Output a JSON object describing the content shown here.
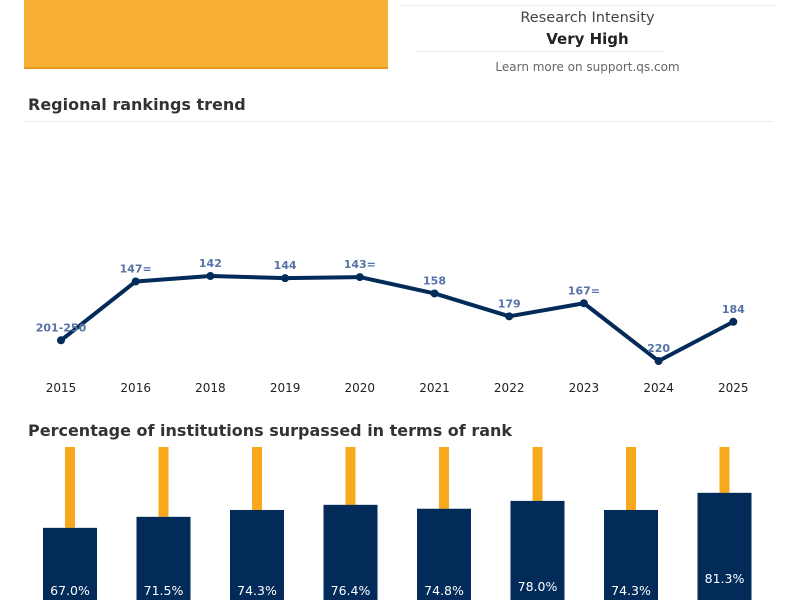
{
  "header": {
    "research_intensity_label": "Research Intensity",
    "research_intensity_value": "Very High",
    "learn_more": "Learn more on support.qs.com"
  },
  "colors": {
    "navy": "#022b59",
    "orange": "#f7a81b",
    "label_blue": "#5672a6"
  },
  "chart_data": [
    {
      "type": "line",
      "title": "Regional rankings trend",
      "y_inverted": true,
      "x": [
        "2015",
        "2016",
        "2018",
        "2019",
        "2020",
        "2021",
        "2022",
        "2023",
        "2024",
        "2025"
      ],
      "labels": [
        "201-250",
        "147=",
        "142",
        "144",
        "143=",
        "158",
        "179",
        "167=",
        "220",
        "184"
      ],
      "values": [
        201,
        147,
        142,
        144,
        143,
        158,
        179,
        167,
        220,
        184
      ]
    },
    {
      "type": "bar",
      "title": "Percentage of institutions surpassed in terms of rank",
      "ylim": [
        0,
        100
      ],
      "values": [
        67.0,
        71.5,
        74.3,
        76.4,
        74.8,
        78.0,
        74.3,
        81.3
      ],
      "labels": [
        "67.0%",
        "71.5%",
        "74.3%",
        "76.4%",
        "74.8%",
        "78.0%",
        "74.3%",
        "81.3%"
      ]
    }
  ]
}
